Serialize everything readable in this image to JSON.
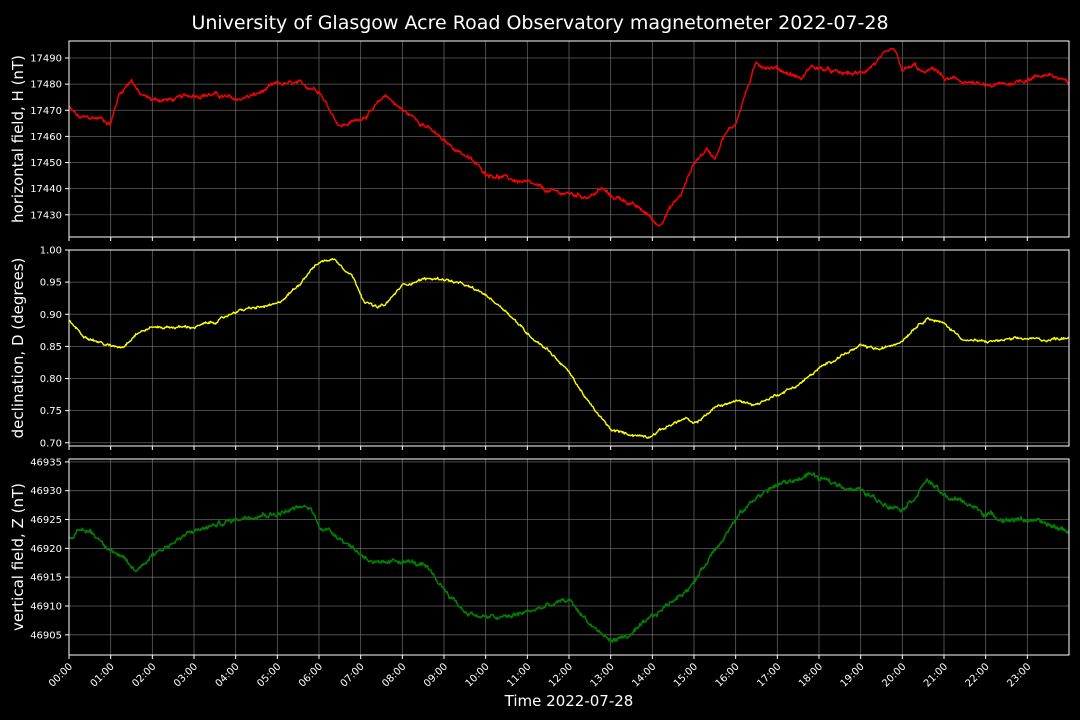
{
  "title": "University of Glasgow Acre Road Observatory magnetometer 2022-07-28",
  "colors": {
    "background": "#000000",
    "grid": "#7f7f7f",
    "axes": "#ffffff"
  },
  "chart_data": [
    {
      "type": "line",
      "ylabel": "horizontal field, H (nT)",
      "ylim": [
        17421.5,
        17496.5
      ],
      "yticks": [
        17430,
        17440,
        17450,
        17460,
        17470,
        17480,
        17490
      ],
      "grid": true,
      "series": [
        {
          "color": "#ff0000",
          "noise": 0.8,
          "x": [
            0,
            0.25,
            0.5,
            0.75,
            1.0,
            1.2,
            1.5,
            1.7,
            2.0,
            2.5,
            3.0,
            3.5,
            4.0,
            4.5,
            5.0,
            5.5,
            6.0,
            6.2,
            6.5,
            6.9,
            7.3,
            7.6,
            8.0,
            8.5,
            9.0,
            9.5,
            10.0,
            10.5,
            11.0,
            11.5,
            12.0,
            12.5,
            12.8,
            13.0,
            13.3,
            13.6,
            13.9,
            14.0,
            14.15,
            14.4,
            14.7,
            15.0,
            15.3,
            15.5,
            15.7,
            16.0,
            16.2,
            16.5,
            16.7,
            17.0,
            17.3,
            17.6,
            17.8,
            18.0,
            18.5,
            19.0,
            19.5,
            19.8,
            20.0,
            20.3,
            20.5,
            20.8,
            21.0,
            21.5,
            22.0,
            22.5,
            23.0,
            23.5,
            24.0
          ],
          "y": [
            17471,
            17467,
            17467,
            17467,
            17465,
            17476,
            17482,
            17476,
            17474,
            17474,
            17476,
            17476,
            17474,
            17476,
            17480,
            17480,
            17478,
            17472,
            17464,
            17466,
            17470,
            17476,
            17470,
            17465,
            17458,
            17453,
            17446,
            17444,
            17442,
            17439,
            17438,
            17437,
            17440,
            17437,
            17436,
            17433,
            17430,
            17428,
            17426,
            17432,
            17438,
            17450,
            17455,
            17452,
            17460,
            17465,
            17475,
            17488,
            17487,
            17486,
            17484,
            17482,
            17487,
            17486,
            17484,
            17484,
            17490,
            17493,
            17485,
            17487,
            17484,
            17486,
            17482,
            17481,
            17479,
            17480,
            17482,
            17484,
            17480
          ]
        }
      ]
    },
    {
      "type": "line",
      "ylabel": "declination, D (degrees)",
      "ylim": [
        0.695,
        1.0
      ],
      "yticks": [
        0.7,
        0.75,
        0.8,
        0.85,
        0.9,
        0.95,
        1.0
      ],
      "grid": true,
      "series": [
        {
          "color": "#ffff00",
          "noise": 0.002,
          "x": [
            0,
            0.3,
            0.6,
            1.0,
            1.3,
            1.6,
            2.0,
            2.5,
            3.0,
            3.3,
            3.6,
            4.0,
            4.5,
            5.0,
            5.5,
            5.8,
            6.0,
            6.2,
            6.4,
            6.8,
            7.1,
            7.4,
            7.6,
            8.0,
            8.5,
            9.0,
            9.5,
            10.0,
            10.5,
            11.0,
            11.5,
            12.0,
            12.5,
            13.0,
            13.3,
            13.6,
            13.9,
            14.2,
            14.5,
            14.8,
            15.0,
            15.5,
            16.0,
            16.5,
            17.0,
            17.5,
            18.0,
            18.5,
            19.0,
            19.5,
            20.0,
            20.3,
            20.6,
            21.0,
            21.5,
            22.0,
            22.5,
            23.0,
            23.5,
            24.0
          ],
          "y": [
            0.89,
            0.87,
            0.86,
            0.85,
            0.85,
            0.87,
            0.88,
            0.88,
            0.88,
            0.885,
            0.89,
            0.905,
            0.91,
            0.915,
            0.945,
            0.97,
            0.98,
            0.985,
            0.985,
            0.96,
            0.92,
            0.91,
            0.915,
            0.945,
            0.955,
            0.955,
            0.945,
            0.93,
            0.905,
            0.87,
            0.845,
            0.81,
            0.76,
            0.72,
            0.715,
            0.712,
            0.71,
            0.72,
            0.73,
            0.738,
            0.728,
            0.755,
            0.765,
            0.76,
            0.775,
            0.79,
            0.815,
            0.835,
            0.85,
            0.845,
            0.86,
            0.88,
            0.895,
            0.885,
            0.86,
            0.857,
            0.86,
            0.862,
            0.86,
            0.865
          ]
        }
      ]
    },
    {
      "type": "line",
      "ylabel": "vertical field, Z (nT)",
      "ylim": [
        46901.5,
        46935.5
      ],
      "yticks": [
        46905,
        46910,
        46915,
        46920,
        46925,
        46930,
        46935
      ],
      "grid": true,
      "series": [
        {
          "color": "#008000",
          "noise": 0.4,
          "x": [
            0,
            0.3,
            0.5,
            1.0,
            1.3,
            1.6,
            2.0,
            2.5,
            3.0,
            3.5,
            4.0,
            4.5,
            5.0,
            5.5,
            5.8,
            6.0,
            6.5,
            7.0,
            7.5,
            8.0,
            8.5,
            9.0,
            9.5,
            10.0,
            10.5,
            11.0,
            11.5,
            12.0,
            12.5,
            12.8,
            13.0,
            13.5,
            14.0,
            14.5,
            15.0,
            15.5,
            16.0,
            16.5,
            17.0,
            17.5,
            17.8,
            18.0,
            18.5,
            19.0,
            19.5,
            20.0,
            20.3,
            20.6,
            21.0,
            21.5,
            22.0,
            22.5,
            23.0,
            23.5,
            24.0
          ],
          "y": [
            46922,
            46923,
            46923,
            46920,
            46918,
            46916,
            46919,
            46921,
            46923,
            46924,
            46925,
            46926,
            46926,
            46927,
            46927,
            46924,
            46922,
            46919,
            46917,
            46918,
            46917,
            46913,
            46909,
            46908,
            46908,
            46909,
            46910,
            46911,
            46907,
            46905,
            46904,
            46905,
            46908,
            46911,
            46914,
            46920,
            46925,
            46929,
            46931,
            46932,
            46933,
            46932,
            46931,
            46930,
            46928,
            46927,
            46929,
            46932,
            46929,
            46928,
            46926,
            46925,
            46925,
            46924,
            46923
          ]
        }
      ]
    }
  ],
  "xaxis": {
    "label": "Time 2022-07-28",
    "range": [
      0,
      24
    ],
    "ticks": [
      "00:00",
      "01:00",
      "02:00",
      "03:00",
      "04:00",
      "05:00",
      "06:00",
      "07:00",
      "08:00",
      "09:00",
      "10:00",
      "11:00",
      "12:00",
      "13:00",
      "14:00",
      "15:00",
      "16:00",
      "17:00",
      "18:00",
      "19:00",
      "20:00",
      "21:00",
      "22:00",
      "23:00"
    ]
  }
}
